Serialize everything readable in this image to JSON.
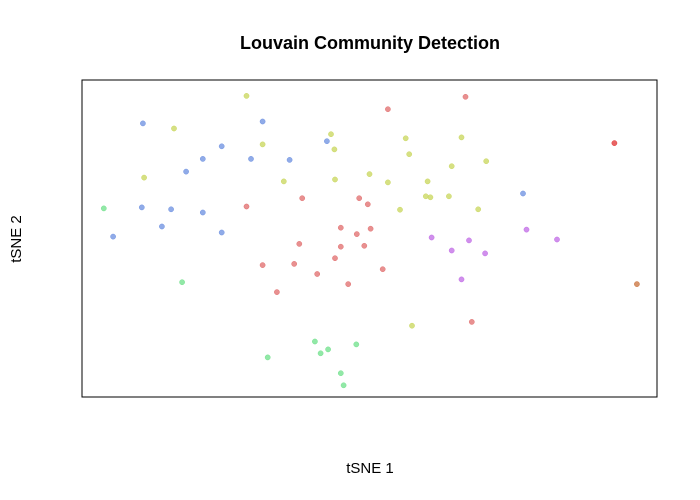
{
  "chart_data": {
    "type": "scatter",
    "title": "Louvain Community Detection",
    "xlabel": "tSNE 1",
    "ylabel": "tSNE 2",
    "xlim": [
      0,
      100
    ],
    "ylim": [
      0,
      100
    ],
    "grid": false,
    "legend": "none",
    "axes_ticks": "hidden",
    "series": [
      {
        "color": "#6b8fe0",
        "points": [
          [
            10.6,
            86.3
          ],
          [
            31.4,
            86.9
          ],
          [
            42.6,
            80.7
          ],
          [
            18.1,
            71.1
          ],
          [
            21.0,
            75.1
          ],
          [
            24.3,
            79.1
          ],
          [
            29.4,
            75.1
          ],
          [
            36.1,
            74.8
          ],
          [
            10.4,
            59.8
          ],
          [
            15.5,
            59.2
          ],
          [
            13.9,
            53.8
          ],
          [
            21.0,
            58.2
          ],
          [
            24.3,
            51.9
          ],
          [
            5.4,
            50.6
          ],
          [
            76.7,
            64.2
          ]
        ]
      },
      {
        "color": "#c8d65a",
        "points": [
          [
            28.6,
            95.0
          ],
          [
            16.0,
            84.7
          ],
          [
            31.4,
            79.7
          ],
          [
            10.8,
            69.2
          ],
          [
            43.3,
            82.9
          ],
          [
            43.9,
            78.1
          ],
          [
            35.1,
            68.0
          ],
          [
            44.0,
            68.6
          ],
          [
            50.0,
            70.3
          ],
          [
            53.2,
            67.7
          ],
          [
            56.3,
            81.6
          ],
          [
            56.9,
            76.6
          ],
          [
            60.1,
            68.0
          ],
          [
            66.0,
            81.9
          ],
          [
            64.3,
            72.8
          ],
          [
            70.3,
            74.4
          ],
          [
            63.8,
            63.3
          ],
          [
            59.8,
            63.3
          ],
          [
            60.6,
            63.0
          ],
          [
            55.3,
            59.1
          ],
          [
            68.9,
            59.2
          ],
          [
            57.4,
            22.5
          ]
        ]
      },
      {
        "color": "#e06b6b",
        "points": [
          [
            53.2,
            90.8
          ],
          [
            66.7,
            94.7
          ],
          [
            28.6,
            60.1
          ],
          [
            38.3,
            62.7
          ],
          [
            48.2,
            62.7
          ],
          [
            49.7,
            60.8
          ],
          [
            45.0,
            53.4
          ],
          [
            50.2,
            53.1
          ],
          [
            31.4,
            41.6
          ],
          [
            37.8,
            48.3
          ],
          [
            36.9,
            42.0
          ],
          [
            45.0,
            47.4
          ],
          [
            47.8,
            51.4
          ],
          [
            49.1,
            47.7
          ],
          [
            44.0,
            43.8
          ],
          [
            40.9,
            38.8
          ],
          [
            52.3,
            40.3
          ],
          [
            46.3,
            35.6
          ],
          [
            33.9,
            33.1
          ],
          [
            67.8,
            23.7
          ]
        ]
      },
      {
        "color": "#e03030",
        "points": [
          [
            92.6,
            80.1
          ]
        ]
      },
      {
        "color": "#c8703a",
        "points": [
          [
            96.5,
            35.6
          ]
        ]
      },
      {
        "color": "#c06ae6",
        "points": [
          [
            60.8,
            50.3
          ],
          [
            64.3,
            46.2
          ],
          [
            66.0,
            37.1
          ],
          [
            67.3,
            49.4
          ],
          [
            70.1,
            45.3
          ],
          [
            77.3,
            52.8
          ],
          [
            82.6,
            49.7
          ]
        ]
      },
      {
        "color": "#6ee08a",
        "points": [
          [
            3.8,
            59.5
          ],
          [
            17.4,
            36.2
          ],
          [
            40.5,
            17.5
          ],
          [
            42.8,
            15.0
          ],
          [
            41.5,
            13.8
          ],
          [
            47.7,
            16.6
          ],
          [
            32.3,
            12.5
          ],
          [
            45.0,
            7.5
          ],
          [
            45.5,
            3.7
          ]
        ]
      }
    ]
  }
}
